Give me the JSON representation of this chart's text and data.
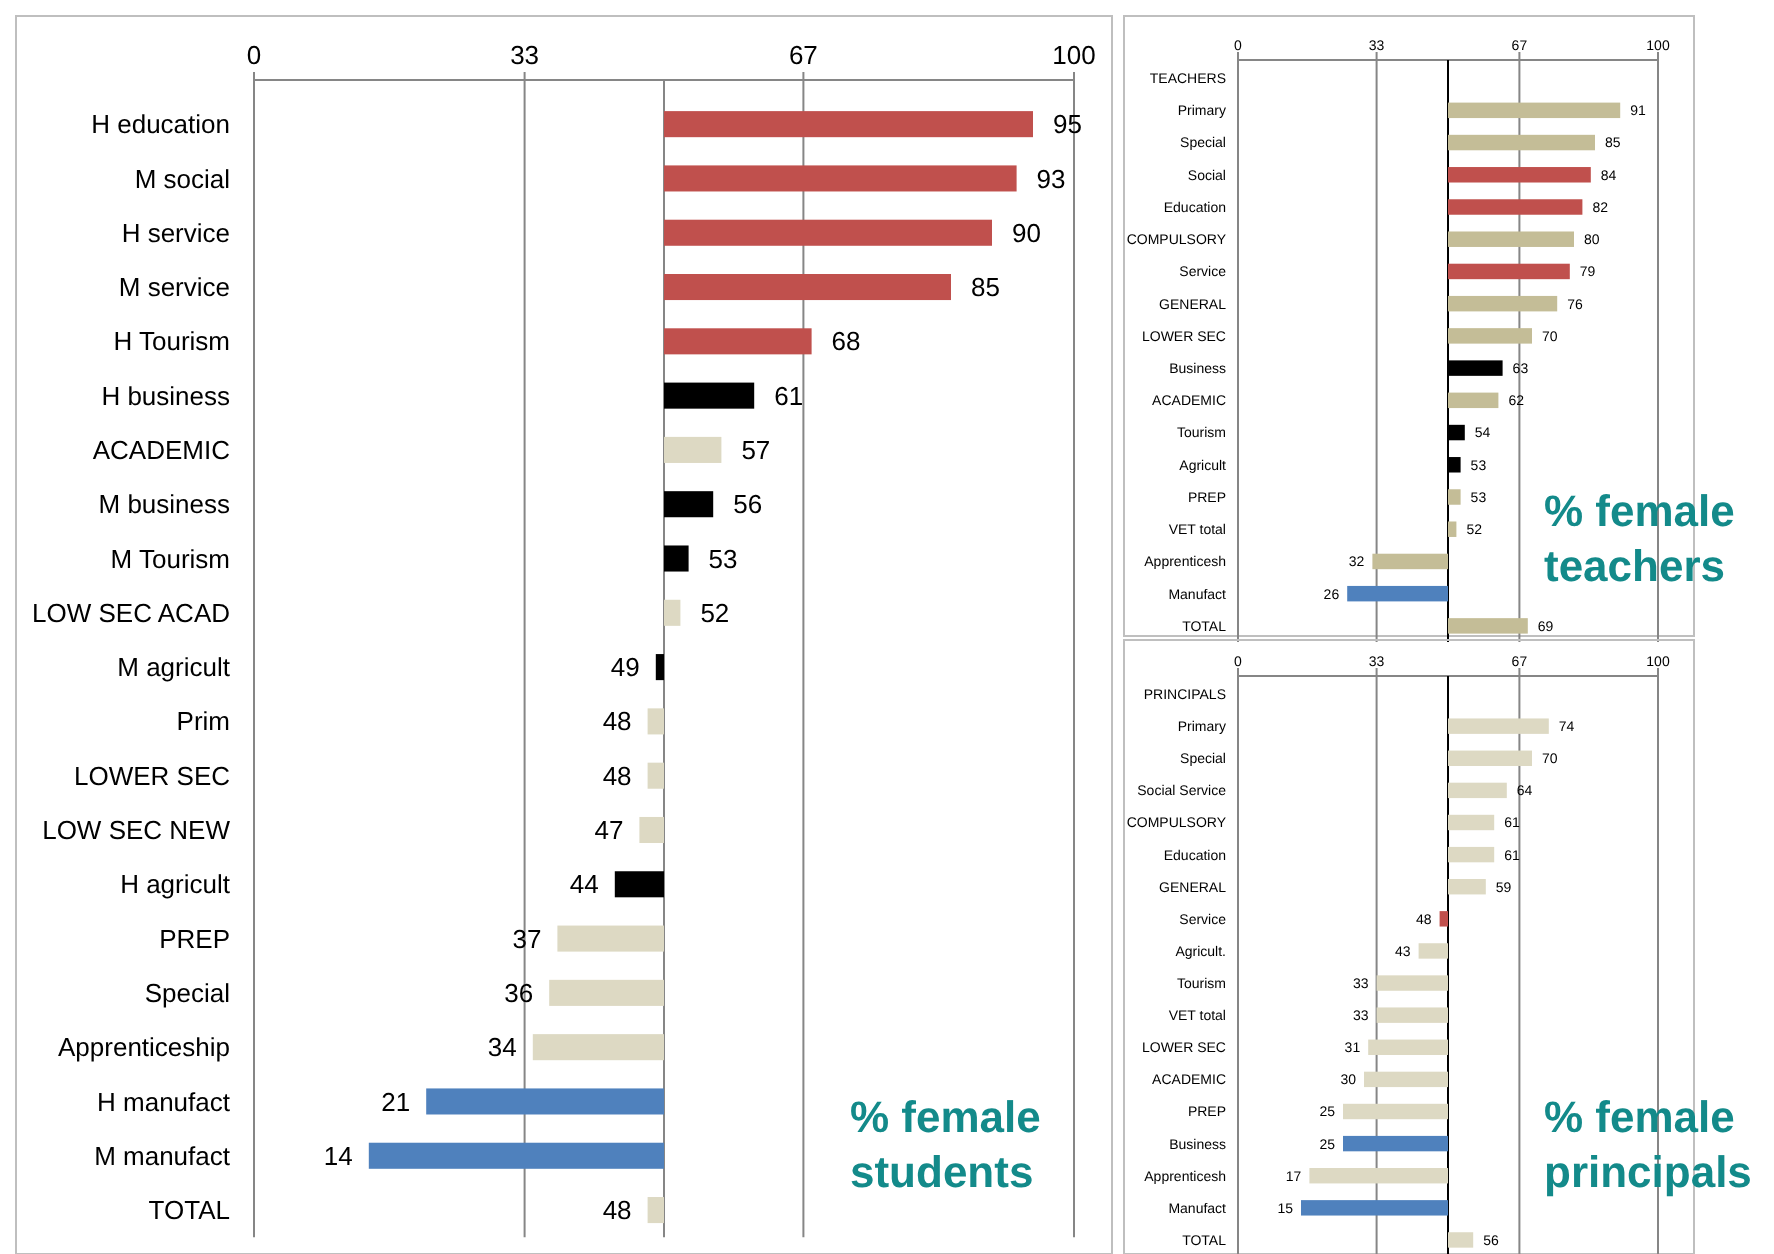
{
  "chart_data": [
    {
      "type": "bar",
      "orientation": "horizontal",
      "categories": [
        "H education",
        "M social",
        "H service",
        "M service",
        "H Tourism",
        "H business",
        "ACADEMIC",
        "M business",
        "M Tourism",
        "LOW SEC ACAD",
        "M agricult",
        "Prim",
        "LOWER SEC",
        "LOW SEC NEW",
        "H agricult",
        "PREP",
        "Special",
        "Apprenticeship",
        "H manufact",
        "M manufact",
        "TOTAL"
      ],
      "base": [
        50,
        50,
        50,
        50,
        50,
        50,
        50,
        50,
        50,
        50,
        50,
        50,
        50,
        50,
        50,
        50,
        50,
        50,
        50,
        50,
        50
      ],
      "ref_lines": [
        {
          "axis": "x",
          "value": 50,
          "color": "#868686"
        }
      ],
      "values": [
        45,
        43,
        40,
        35,
        18,
        11,
        7,
        6,
        3,
        2,
        -1,
        -2,
        -2,
        -3,
        -6,
        -13,
        -14,
        -16,
        -29,
        -36,
        -2
      ],
      "value_labels": [
        "95",
        "93",
        "90",
        "85",
        "68",
        "61",
        "57",
        "56",
        "53",
        "52",
        "49",
        "48",
        "48",
        "47",
        "44",
        "37",
        "36",
        "34",
        "21",
        "14",
        "48"
      ],
      "colors": [
        "#c0504d",
        "#c0504d",
        "#c0504d",
        "#c0504d",
        "#c0504d",
        "#000000",
        "#ddd9c3",
        "#000000",
        "#000000",
        "#ddd9c3",
        "#000000",
        "#ddd9c3",
        "#ddd9c3",
        "#ddd9c3",
        "#000000",
        "#ddd9c3",
        "#ddd9c3",
        "#ddd9c3",
        "#4f81bd",
        "#4f81bd",
        "#ddd9c3"
      ],
      "xlim": [
        0,
        100
      ],
      "xticks": [
        0,
        33,
        67,
        100
      ],
      "grid": "x",
      "annotations": [
        "% female students"
      ]
    },
    {
      "type": "bar",
      "orientation": "horizontal",
      "categories": [
        "TEACHERS",
        "Primary",
        "Special",
        "Social",
        "Education",
        "COMPULSORY",
        "Service",
        "GENERAL",
        "LOWER SEC",
        "Business",
        "ACADEMIC",
        "Tourism",
        "Agricult",
        "PREP",
        "VET total",
        "Apprenticesh",
        "Manufact",
        "TOTAL"
      ],
      "base": [
        null,
        50,
        50,
        50,
        50,
        50,
        50,
        50,
        50,
        50,
        50,
        50,
        50,
        50,
        50,
        50,
        50,
        50
      ],
      "ref_lines": [
        {
          "axis": "x",
          "value": 50,
          "color": "#000000"
        }
      ],
      "values": [
        null,
        41,
        35,
        34,
        32,
        30,
        29,
        26,
        20,
        13,
        12,
        4,
        3,
        3,
        2,
        -18,
        -24,
        19
      ],
      "value_labels": [
        null,
        "91",
        "85",
        "84",
        "82",
        "80",
        "79",
        "76",
        "70",
        "63",
        "62",
        "54",
        "53",
        "53",
        "52",
        "32",
        "26",
        "69"
      ],
      "colors": [
        null,
        "#c4bd97",
        "#c4bd97",
        "#c0504d",
        "#c0504d",
        "#c4bd97",
        "#c0504d",
        "#c4bd97",
        "#c4bd97",
        "#000000",
        "#c4bd97",
        "#000000",
        "#000000",
        "#c4bd97",
        "#c4bd97",
        "#c4bd97",
        "#4f81bd",
        "#c4bd97"
      ],
      "xlim": [
        0,
        100
      ],
      "xticks": [
        0,
        33,
        67,
        100
      ],
      "grid": "x",
      "annotations": [
        "% female teachers"
      ]
    },
    {
      "type": "bar",
      "orientation": "horizontal",
      "categories": [
        "PRINCIPALS",
        "Primary",
        "Special",
        "Social Service",
        "COMPULSORY",
        "Education",
        "GENERAL",
        "Service",
        "Agricult.",
        "Tourism",
        "VET total",
        "LOWER SEC",
        "ACADEMIC",
        "PREP",
        "Business",
        "Apprenticesh",
        "Manufact",
        "TOTAL"
      ],
      "base": [
        null,
        50,
        50,
        50,
        50,
        50,
        50,
        50,
        50,
        50,
        50,
        50,
        50,
        50,
        50,
        50,
        50,
        50
      ],
      "ref_lines": [
        {
          "axis": "x",
          "value": 50,
          "color": "#000000"
        }
      ],
      "values": [
        null,
        24,
        20,
        14,
        11,
        11,
        9,
        -2,
        -7,
        -17,
        -17,
        -19,
        -20,
        -25,
        -25,
        -33,
        -35,
        6
      ],
      "value_labels": [
        null,
        "74",
        "70",
        "64",
        "61",
        "61",
        "59",
        "48",
        "43",
        "33",
        "33",
        "31",
        "30",
        "25",
        "25",
        "17",
        "15",
        "56"
      ],
      "colors": [
        null,
        "#ddd9c3",
        "#ddd9c3",
        "#ddd9c3",
        "#ddd9c3",
        "#ddd9c3",
        "#ddd9c3",
        "#c0504d",
        "#ddd9c3",
        "#ddd9c3",
        "#ddd9c3",
        "#ddd9c3",
        "#ddd9c3",
        "#ddd9c3",
        "#4f81bd",
        "#ddd9c3",
        "#4f81bd",
        "#ddd9c3"
      ],
      "xlim": [
        0,
        100
      ],
      "xticks": [
        0,
        33,
        67,
        100
      ],
      "grid": "x",
      "annotations": [
        "% female principals"
      ]
    }
  ]
}
